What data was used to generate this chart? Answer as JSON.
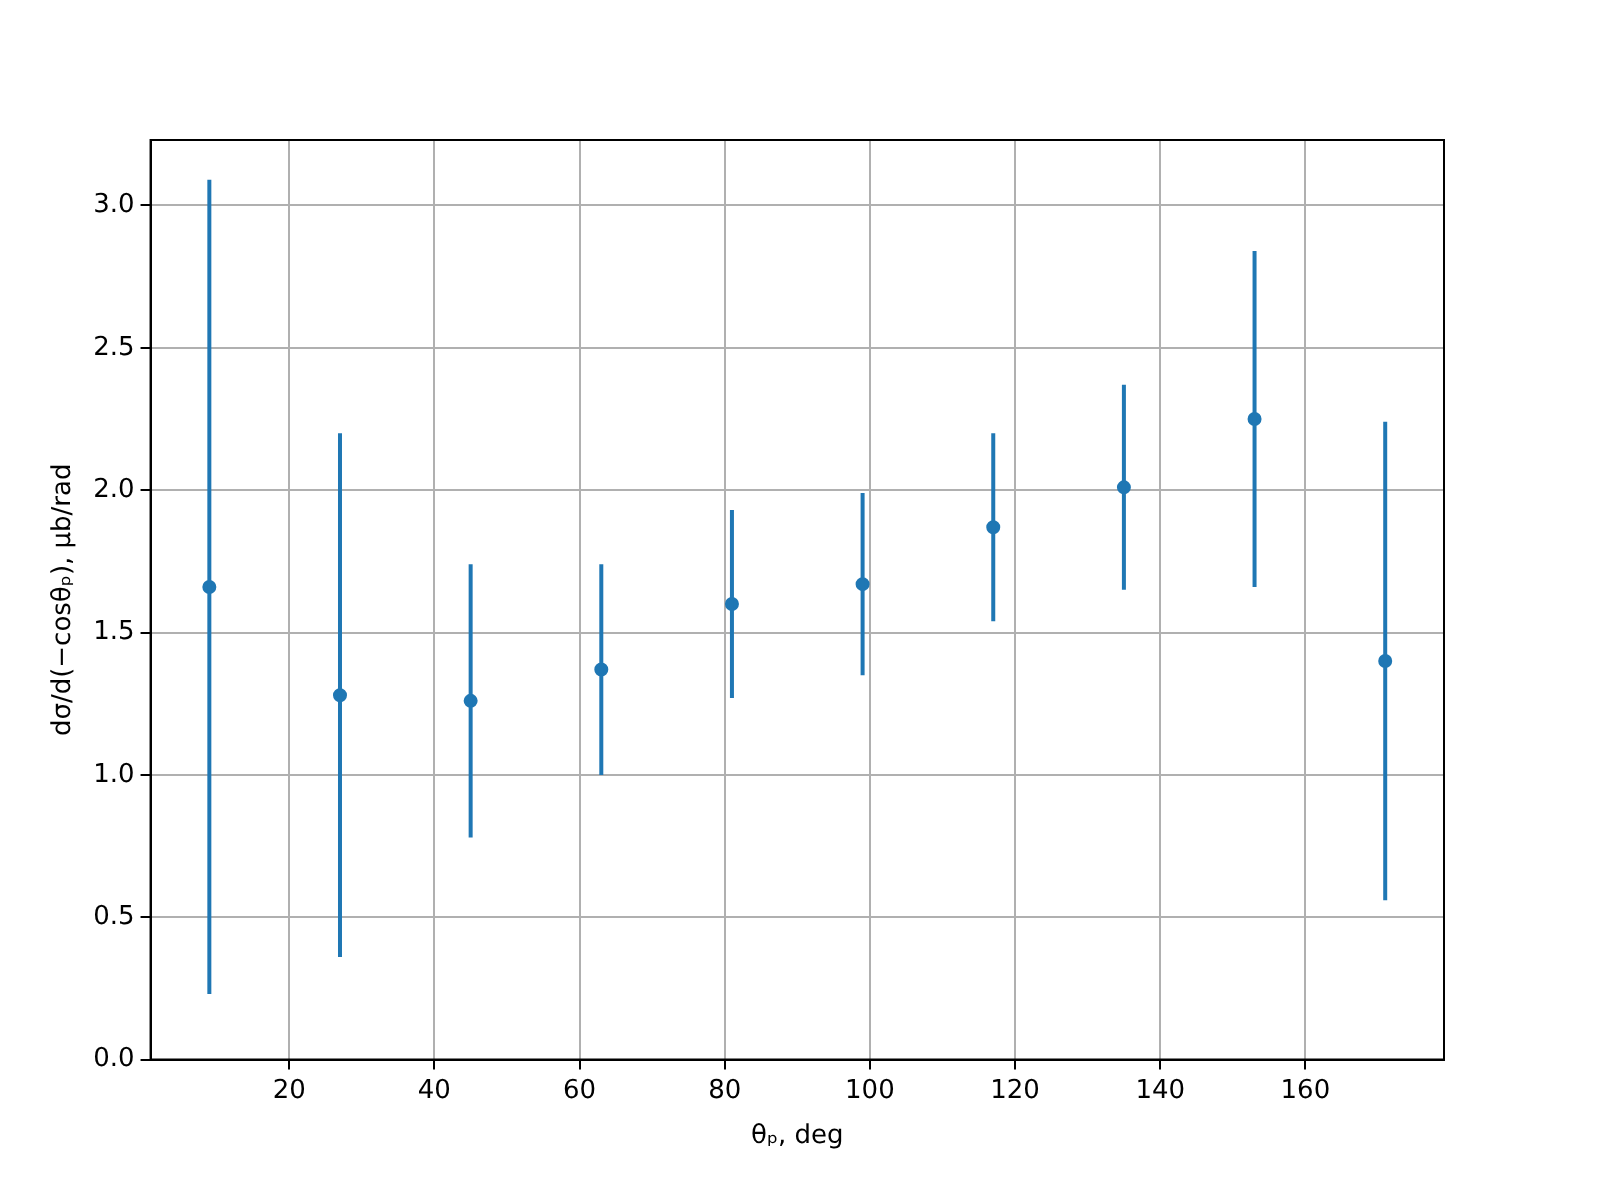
{
  "chart_data": {
    "type": "scatter",
    "xlabel": "θₚ, deg",
    "ylabel": "dσ/d(−cosθₚ), μb/rad",
    "x": [
      9,
      27,
      45,
      63,
      81,
      99,
      117,
      135,
      153,
      171
    ],
    "series": [
      {
        "color": "#1f77b4",
        "values": [
          1.66,
          1.28,
          1.26,
          1.37,
          1.6,
          1.67,
          1.87,
          2.01,
          2.25,
          1.4
        ],
        "errors": [
          1.43,
          0.92,
          0.48,
          0.37,
          0.33,
          0.32,
          0.33,
          0.36,
          0.59,
          0.84
        ]
      }
    ],
    "xlim": [
      0.9,
      179.1
    ],
    "xticks": [
      20,
      40,
      60,
      80,
      100,
      120,
      140,
      160
    ],
    "ylim": [
      0,
      3.23
    ],
    "yticks": [
      {
        "value": 0,
        "label": "0.0"
      },
      {
        "value": 0.5,
        "label": "0.5"
      },
      {
        "value": 1,
        "label": "1.0"
      },
      {
        "value": 1.5,
        "label": "1.5"
      },
      {
        "value": 2,
        "label": "2.0"
      },
      {
        "value": 2.5,
        "label": "2.5"
      },
      {
        "value": 3,
        "label": "3.0"
      }
    ],
    "grid": true,
    "marker": "circle",
    "legend": false
  }
}
